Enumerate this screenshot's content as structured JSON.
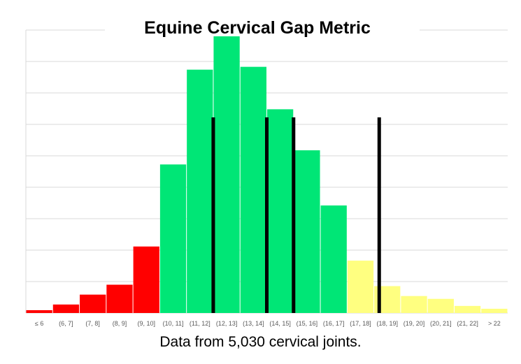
{
  "chart_data": {
    "type": "bar",
    "title": "Equine Cervical Gap Metric",
    "xlabel": "",
    "ylabel": "",
    "caption": "Data from 5,030 cervical joints.",
    "grid": true,
    "y_axis_labels_shown": false,
    "ylim": [
      0,
      100
    ],
    "categories": [
      "≤ 6",
      "(6, 7]",
      "(7, 8]",
      "(8, 9]",
      "(9, 10]",
      "(10, 11]",
      "(11, 12]",
      "(12, 13]",
      "(13, 14]",
      "(14, 15]",
      "(15, 16]",
      "(16, 17]",
      "(17, 18]",
      "(18, 19]",
      "(19, 20]",
      "(20, 21]",
      "(21, 22]",
      "> 22"
    ],
    "values": [
      1,
      3,
      6.5,
      10,
      23.5,
      52.5,
      86,
      98.5,
      87,
      72,
      57.5,
      38,
      18.5,
      9.5,
      6,
      5,
      2.5,
      1.5
    ],
    "colors": [
      "#ff0000",
      "#ff0000",
      "#ff0000",
      "#ff0000",
      "#ff0000",
      "#00e676",
      "#00e676",
      "#00e676",
      "#00e676",
      "#00e676",
      "#00e676",
      "#00e676",
      "#ffff80",
      "#ffff80",
      "#ffff80",
      "#ffff80",
      "#ffff80",
      "#ffff80"
    ],
    "reference_lines": [
      12,
      14,
      15,
      18.2
    ]
  }
}
